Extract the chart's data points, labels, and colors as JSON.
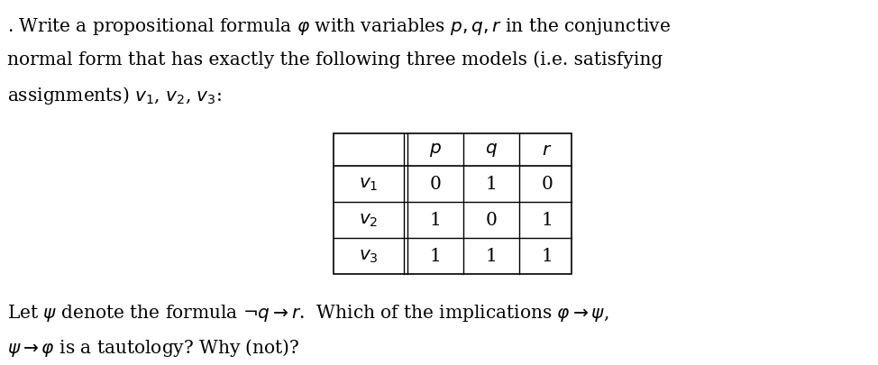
{
  "background_color": "#ffffff",
  "paragraph1_line1": ". Write a propositional formula $\\varphi$ with variables $p, q, r$ in the conjunctive",
  "paragraph1_line2": "normal form that has exactly the following three models (i.e. satisfying",
  "paragraph1_line3": "assignments) $v_1$, $v_2$, $v_3$:",
  "table": {
    "col_headers": [
      "$p$",
      "$q$",
      "$r$"
    ],
    "rows": [
      {
        "label": "$v_1$",
        "values": [
          "0",
          "1",
          "0"
        ]
      },
      {
        "label": "$v_2$",
        "values": [
          "1",
          "0",
          "1"
        ]
      },
      {
        "label": "$v_3$",
        "values": [
          "1",
          "1",
          "1"
        ]
      }
    ]
  },
  "paragraph2_line1": "Let $\\psi$ denote the formula $\\neg q \\to r$.  Which of the implications $\\varphi \\to \\psi$,",
  "paragraph2_line2": "$\\psi \\to \\varphi$ is a tautology? Why (not)?",
  "font_size_text": 14.5,
  "font_size_table": 14.5,
  "text_color": "#000000",
  "figwidth": 9.74,
  "figheight": 4.05,
  "dpi": 100
}
